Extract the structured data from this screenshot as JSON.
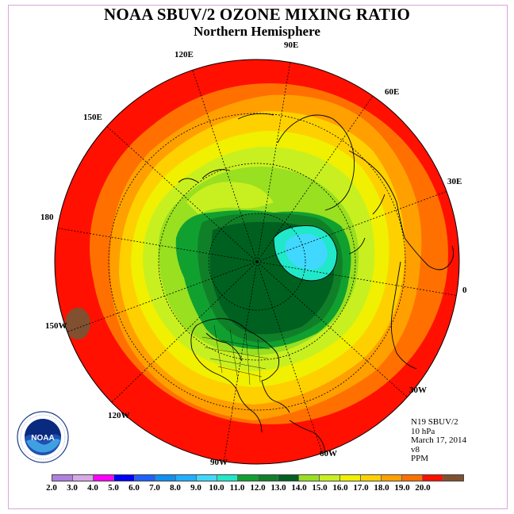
{
  "title": "NOAA SBUV/2 OZONE MIXING RATIO",
  "subtitle": "Northern Hemisphere",
  "longitude_labels": [
    "90E",
    "60E",
    "30E",
    "0",
    "30W",
    "60W",
    "90W",
    "120W",
    "150W",
    "180",
    "150E",
    "120E"
  ],
  "info": {
    "satellite": "N19 SBUV/2",
    "pressure": "10 hPa",
    "date": "March 17, 2014",
    "version": "v8",
    "units": "PPM"
  },
  "colorbar": {
    "ticks": [
      "2.0",
      "3.0",
      "4.0",
      "5.0",
      "6.0",
      "7.0",
      "8.0",
      "9.0",
      "10.0",
      "11.0",
      "12.0",
      "13.0",
      "14.0",
      "15.0",
      "16.0",
      "17.0",
      "18.0",
      "19.0",
      "20.0"
    ],
    "colors": [
      "#b080e0",
      "#d8a8e8",
      "#ff00ff",
      "#0000ff",
      "#2060ff",
      "#1090f0",
      "#20b0ff",
      "#40d8ff",
      "#20e8c8",
      "#10a030",
      "#108028",
      "#006020",
      "#98e020",
      "#c8f020",
      "#f0f000",
      "#ffd000",
      "#ffa000",
      "#ff7000",
      "#ff1000",
      "#805030"
    ]
  },
  "logo": {
    "text": "NOAA",
    "ring_text": "NATIONAL OCEANIC AND ATMOSPHERIC ADMINISTRATION · U.S. DEPARTMENT OF COMMERCE"
  }
}
